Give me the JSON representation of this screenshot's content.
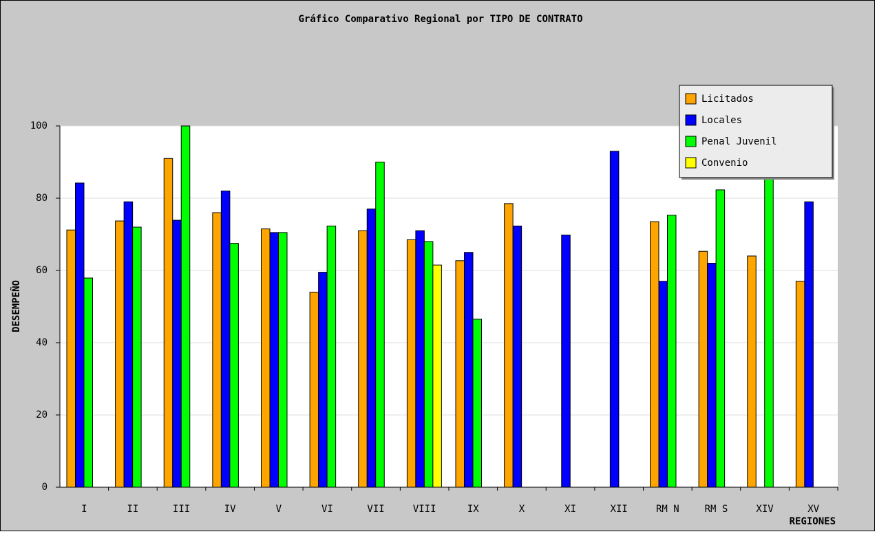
{
  "chart_data": {
    "type": "bar",
    "title": "Gráfico Comparativo Regional por TIPO DE CONTRATO",
    "x_label": "REGIONES",
    "y_label": "DESEMPEÑO",
    "categories": [
      "I",
      "II",
      "III",
      "IV",
      "V",
      "VI",
      "VII",
      "VIII",
      "IX",
      "X",
      "XI",
      "XII",
      "RM N",
      "RM S",
      "XIV",
      "XV"
    ],
    "series": [
      {
        "name": "Licitados",
        "color": "#ffa500",
        "values": [
          71.2,
          73.7,
          91,
          76,
          71.5,
          54,
          71,
          68.5,
          62.7,
          78.5,
          null,
          null,
          73.5,
          65.3,
          64,
          57
        ]
      },
      {
        "name": "Locales",
        "color": "#0000ff",
        "values": [
          84.2,
          79,
          73.9,
          82,
          70.5,
          59.5,
          77,
          71,
          65,
          72.3,
          69.8,
          93,
          57,
          62,
          null,
          79
        ]
      },
      {
        "name": "Penal Juvenil",
        "color": "#00ff00",
        "values": [
          57.9,
          72,
          100,
          67.5,
          70.5,
          72.3,
          90,
          68,
          46.5,
          null,
          null,
          null,
          75.3,
          82.3,
          86,
          null
        ]
      },
      {
        "name": "Convenio",
        "color": "#ffff00",
        "values": [
          null,
          null,
          null,
          null,
          null,
          null,
          null,
          61.5,
          null,
          null,
          null,
          null,
          null,
          null,
          null,
          null
        ]
      }
    ],
    "ylim": [
      0,
      100
    ],
    "yticks": [
      0,
      20,
      40,
      60,
      80,
      100
    ],
    "grid": true,
    "legend": "upper right"
  }
}
